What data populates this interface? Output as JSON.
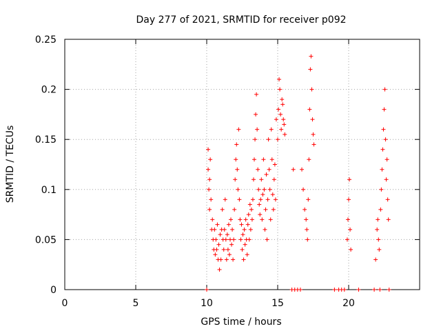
{
  "chart_data": {
    "type": "scatter",
    "title": "Day 277 of 2021, SRMTID for receiver p092",
    "xlabel": "GPS time / hours",
    "ylabel": "SRMTID / TECUs",
    "xlim": [
      0,
      25
    ],
    "ylim": [
      0,
      0.25
    ],
    "x_ticks": [
      0,
      5,
      10,
      15,
      20
    ],
    "x_tick_labels": [
      "0",
      "5",
      "10",
      "15",
      "20"
    ],
    "y_ticks": [
      0,
      0.05,
      0.1,
      0.15,
      0.2,
      0.25
    ],
    "y_tick_labels": [
      "0",
      "0.05",
      "0.1",
      "0.15",
      "0.2",
      "0.25"
    ],
    "grid": true,
    "marker": "plus",
    "series": [
      {
        "name": "SRMTID",
        "color": "#ff0000",
        "points": [
          [
            10.0,
            0.0
          ],
          [
            10.1,
            0.14
          ],
          [
            10.1,
            0.12
          ],
          [
            10.15,
            0.1
          ],
          [
            10.2,
            0.08
          ],
          [
            10.2,
            0.11
          ],
          [
            10.25,
            0.13
          ],
          [
            10.3,
            0.09
          ],
          [
            10.35,
            0.06
          ],
          [
            10.4,
            0.07
          ],
          [
            10.45,
            0.05
          ],
          [
            10.5,
            0.04
          ],
          [
            10.55,
            0.06
          ],
          [
            10.6,
            0.035
          ],
          [
            10.65,
            0.05
          ],
          [
            10.7,
            0.04
          ],
          [
            10.75,
            0.065
          ],
          [
            10.8,
            0.03
          ],
          [
            10.85,
            0.045
          ],
          [
            10.9,
            0.02
          ],
          [
            10.95,
            0.055
          ],
          [
            11.0,
            0.03
          ],
          [
            11.05,
            0.06
          ],
          [
            11.1,
            0.08
          ],
          [
            11.15,
            0.05
          ],
          [
            11.2,
            0.04
          ],
          [
            11.25,
            0.06
          ],
          [
            11.3,
            0.09
          ],
          [
            11.35,
            0.05
          ],
          [
            11.4,
            0.03
          ],
          [
            11.45,
            0.055
          ],
          [
            11.5,
            0.04
          ],
          [
            11.55,
            0.065
          ],
          [
            11.6,
            0.035
          ],
          [
            11.65,
            0.05
          ],
          [
            11.7,
            0.07
          ],
          [
            11.75,
            0.045
          ],
          [
            11.8,
            0.06
          ],
          [
            11.85,
            0.03
          ],
          [
            11.9,
            0.05
          ],
          [
            11.95,
            0.08
          ],
          [
            12.0,
            0.11
          ],
          [
            12.05,
            0.13
          ],
          [
            12.1,
            0.145
          ],
          [
            12.15,
            0.12
          ],
          [
            12.2,
            0.1
          ],
          [
            12.25,
            0.16
          ],
          [
            12.3,
            0.09
          ],
          [
            12.35,
            0.07
          ],
          [
            12.4,
            0.05
          ],
          [
            12.45,
            0.065
          ],
          [
            12.5,
            0.04
          ],
          [
            12.55,
            0.055
          ],
          [
            12.6,
            0.03
          ],
          [
            12.65,
            0.06
          ],
          [
            12.7,
            0.045
          ],
          [
            12.75,
            0.07
          ],
          [
            12.8,
            0.05
          ],
          [
            12.85,
            0.035
          ],
          [
            12.9,
            0.065
          ],
          [
            12.95,
            0.075
          ],
          [
            13.0,
            0.05
          ],
          [
            13.05,
            0.085
          ],
          [
            13.1,
            0.06
          ],
          [
            13.15,
            0.08
          ],
          [
            13.2,
            0.07
          ],
          [
            13.25,
            0.09
          ],
          [
            13.3,
            0.11
          ],
          [
            13.35,
            0.13
          ],
          [
            13.4,
            0.15
          ],
          [
            13.45,
            0.175
          ],
          [
            13.5,
            0.195
          ],
          [
            13.55,
            0.16
          ],
          [
            13.6,
            0.12
          ],
          [
            13.65,
            0.1
          ],
          [
            13.7,
            0.085
          ],
          [
            13.75,
            0.075
          ],
          [
            13.8,
            0.09
          ],
          [
            13.85,
            0.11
          ],
          [
            13.9,
            0.07
          ],
          [
            13.95,
            0.095
          ],
          [
            14.0,
            0.13
          ],
          [
            14.05,
            0.1
          ],
          [
            14.1,
            0.06
          ],
          [
            14.15,
            0.08
          ],
          [
            14.2,
            0.115
          ],
          [
            14.25,
            0.05
          ],
          [
            14.3,
            0.09
          ],
          [
            14.35,
            0.15
          ],
          [
            14.4,
            0.12
          ],
          [
            14.45,
            0.1
          ],
          [
            14.5,
            0.07
          ],
          [
            14.55,
            0.16
          ],
          [
            14.6,
            0.13
          ],
          [
            14.65,
            0.095
          ],
          [
            14.7,
            0.08
          ],
          [
            14.75,
            0.11
          ],
          [
            14.8,
            0.125
          ],
          [
            14.85,
            0.09
          ],
          [
            14.9,
            0.17
          ],
          [
            15.0,
            0.15
          ],
          [
            15.05,
            0.18
          ],
          [
            15.1,
            0.21
          ],
          [
            15.15,
            0.2
          ],
          [
            15.2,
            0.175
          ],
          [
            15.25,
            0.16
          ],
          [
            15.3,
            0.19
          ],
          [
            15.35,
            0.185
          ],
          [
            15.4,
            0.17
          ],
          [
            15.45,
            0.165
          ],
          [
            15.5,
            0.155
          ],
          [
            16.0,
            0.0
          ],
          [
            16.1,
            0.12
          ],
          [
            16.2,
            0.0
          ],
          [
            16.4,
            0.0
          ],
          [
            16.6,
            0.0
          ],
          [
            16.7,
            0.12
          ],
          [
            16.8,
            0.1
          ],
          [
            16.9,
            0.08
          ],
          [
            17.0,
            0.07
          ],
          [
            17.05,
            0.06
          ],
          [
            17.1,
            0.05
          ],
          [
            17.15,
            0.09
          ],
          [
            17.2,
            0.13
          ],
          [
            17.25,
            0.18
          ],
          [
            17.3,
            0.22
          ],
          [
            17.35,
            0.233
          ],
          [
            17.4,
            0.2
          ],
          [
            17.45,
            0.17
          ],
          [
            17.5,
            0.155
          ],
          [
            17.55,
            0.145
          ],
          [
            19.0,
            0.0
          ],
          [
            19.3,
            0.0
          ],
          [
            19.5,
            0.0
          ],
          [
            19.7,
            0.0
          ],
          [
            19.9,
            0.05
          ],
          [
            19.95,
            0.07
          ],
          [
            20.0,
            0.09
          ],
          [
            20.05,
            0.11
          ],
          [
            20.1,
            0.06
          ],
          [
            20.15,
            0.04
          ],
          [
            20.7,
            0.0
          ],
          [
            21.8,
            0.0
          ],
          [
            21.9,
            0.03
          ],
          [
            22.0,
            0.06
          ],
          [
            22.05,
            0.07
          ],
          [
            22.1,
            0.05
          ],
          [
            22.15,
            0.04
          ],
          [
            22.2,
            0.0
          ],
          [
            22.25,
            0.08
          ],
          [
            22.3,
            0.1
          ],
          [
            22.35,
            0.12
          ],
          [
            22.4,
            0.14
          ],
          [
            22.45,
            0.16
          ],
          [
            22.5,
            0.18
          ],
          [
            22.55,
            0.2
          ],
          [
            22.6,
            0.15
          ],
          [
            22.65,
            0.11
          ],
          [
            22.7,
            0.13
          ],
          [
            22.75,
            0.09
          ],
          [
            22.8,
            0.07
          ],
          [
            22.85,
            0.0
          ]
        ]
      }
    ]
  }
}
